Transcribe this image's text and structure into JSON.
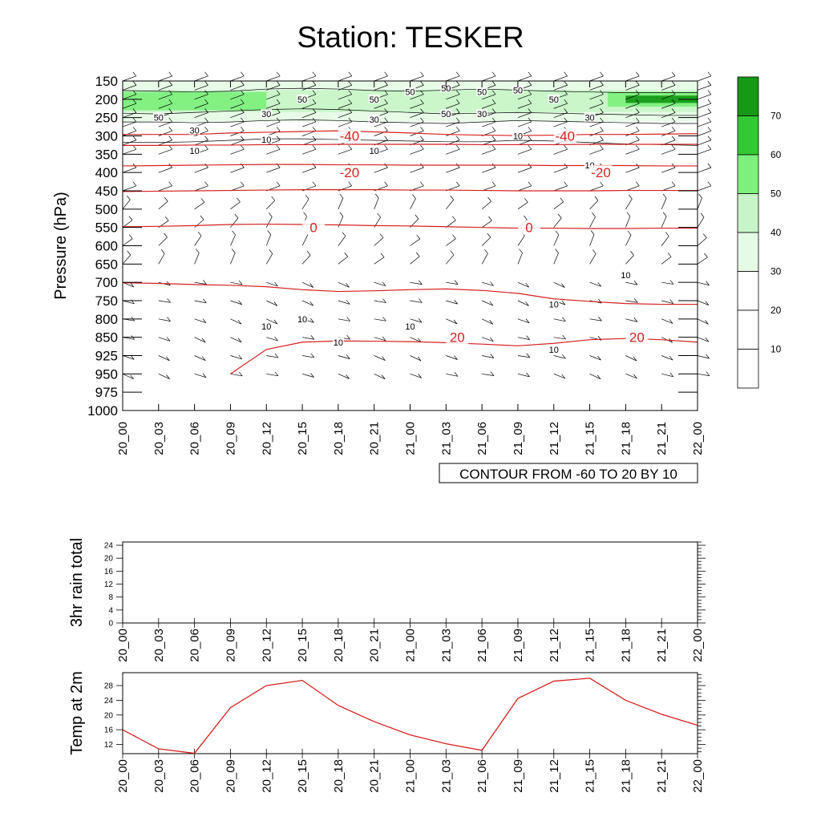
{
  "title": "Station: TESKER",
  "colors": {
    "contour_line": "#d62020",
    "thin_contour": "#000000",
    "shade_levels": [
      "#ffffff",
      "#ffffff",
      "#e6fbe6",
      "#c8f5c8",
      "#7df07d",
      "#33c933",
      "#169a16"
    ]
  },
  "chart_data": [
    {
      "type": "heatmap",
      "title": "Station: TESKER",
      "ylabel": "Pressure (hPa)",
      "xlabel": "",
      "x_tick_labels": [
        "20_00",
        "20_03",
        "20_06",
        "20_09",
        "20_12",
        "20_15",
        "20_18",
        "20_21",
        "21_00",
        "21_03",
        "21_06",
        "21_09",
        "21_12",
        "21_15",
        "21_18",
        "21_21",
        "22_00"
      ],
      "y_tick_labels": [
        "150",
        "200",
        "250",
        "300",
        "350",
        "400",
        "450",
        "500",
        "550",
        "600",
        "650",
        "700",
        "750",
        "800",
        "850",
        "925",
        "950",
        "975",
        "1000"
      ],
      "ylim": [
        1000,
        150
      ],
      "contour_info": "CONTOUR FROM -60 TO 20 BY 10",
      "colorbar": {
        "levels": [
          10,
          20,
          30,
          40,
          50,
          60,
          70
        ],
        "labels": [
          "10",
          "20",
          "30",
          "40",
          "50",
          "60",
          "70"
        ],
        "orientation": "vertical"
      },
      "temperature_contour_labels": [
        {
          "value": "-40",
          "x": "20_18",
          "p": 300
        },
        {
          "value": "-40",
          "x": "21_12",
          "p": 300
        },
        {
          "value": "-20",
          "x": "20_18",
          "p": 400
        },
        {
          "value": "-20",
          "x": "21_15",
          "p": 400
        },
        {
          "value": "0",
          "x": "20_15",
          "p": 550
        },
        {
          "value": "0",
          "x": "21_09",
          "p": 550
        },
        {
          "value": "20",
          "x": "21_03",
          "p": 850
        },
        {
          "value": "20",
          "x": "21_18",
          "p": 850
        }
      ],
      "temperature_contours": [
        {
          "level": -40,
          "p": [
            296,
            296,
            296,
            292,
            290,
            288,
            286,
            289,
            292,
            296,
            298,
            299,
            298,
            296,
            296,
            295,
            294
          ]
        },
        {
          "level": -30,
          "p": [
            326,
            326,
            325,
            325,
            324,
            324,
            323,
            323,
            323,
            323,
            324,
            324,
            324,
            323,
            323,
            323,
            323
          ]
        },
        {
          "level": -20,
          "p": [
            382,
            381,
            380,
            379,
            378,
            378,
            379,
            379,
            380,
            380,
            380,
            380,
            381,
            381,
            381,
            382,
            382
          ]
        },
        {
          "level": -10,
          "p": [
            452,
            451,
            450,
            449,
            448,
            447,
            447,
            447,
            448,
            448,
            449,
            450,
            450,
            450,
            449,
            449,
            449
          ]
        },
        {
          "level": 0,
          "p": [
            548,
            547,
            545,
            542,
            541,
            542,
            543,
            545,
            546,
            548,
            550,
            552,
            552,
            553,
            553,
            552,
            552
          ]
        },
        {
          "level": 10,
          "p": [
            701,
            703,
            706,
            708,
            712,
            720,
            725,
            723,
            720,
            718,
            722,
            730,
            745,
            752,
            758,
            760,
            760
          ]
        },
        {
          "level": 20,
          "p": [
            null,
            null,
            null,
            950,
            900,
            870,
            865,
            866,
            868,
            872,
            878,
            885,
            875,
            860,
            855,
            860,
            870
          ]
        }
      ],
      "wind_speed_labels": [
        {
          "value": "50",
          "x": "20_03",
          "p": 250
        },
        {
          "value": "50",
          "x": "20_15",
          "p": 200
        },
        {
          "value": "50",
          "x": "20_21",
          "p": 200
        },
        {
          "value": "50",
          "x": "21_00",
          "p": 180
        },
        {
          "value": "50",
          "x": "21_03",
          "p": 170
        },
        {
          "value": "50",
          "x": "21_06",
          "p": 180
        },
        {
          "value": "50",
          "x": "21_09",
          "p": 175
        },
        {
          "value": "50",
          "x": "21_03",
          "p": 240
        },
        {
          "value": "50",
          "x": "21_12",
          "p": 200
        },
        {
          "value": "30",
          "x": "20_12",
          "p": 240
        },
        {
          "value": "30",
          "x": "20_06",
          "p": 285
        },
        {
          "value": "30",
          "x": "20_21",
          "p": 255
        },
        {
          "value": "30",
          "x": "21_06",
          "p": 240
        },
        {
          "value": "30",
          "x": "21_15",
          "p": 250
        },
        {
          "value": "10",
          "x": "20_06",
          "p": 340
        },
        {
          "value": "10",
          "x": "20_12",
          "p": 310
        },
        {
          "value": "10",
          "x": "20_21",
          "p": 340
        },
        {
          "value": "10",
          "x": "21_09",
          "p": 300
        },
        {
          "value": "10",
          "x": "21_15",
          "p": 380
        },
        {
          "value": "10",
          "x": "21_18",
          "p": 680
        },
        {
          "value": "10",
          "x": "21_12",
          "p": 760
        },
        {
          "value": "10",
          "x": "20_12",
          "p": 820
        },
        {
          "value": "10",
          "x": "20_15",
          "p": 800
        },
        {
          "value": "10",
          "x": "21_00",
          "p": 820
        },
        {
          "value": "10",
          "x": "20_18",
          "p": 870
        },
        {
          "value": "10",
          "x": "21_12",
          "p": 900
        }
      ],
      "wind_shading": [
        {
          "x": [
            0,
            16
          ],
          "p_top": 150,
          "p_bottom": 260,
          "level": 40
        },
        {
          "x": [
            0,
            16
          ],
          "p_top": 175,
          "p_bottom": 235,
          "level": 50
        },
        {
          "x": [
            0,
            4
          ],
          "p_top": 180,
          "p_bottom": 230,
          "level": 60
        },
        {
          "x": [
            13.5,
            16
          ],
          "p_top": 180,
          "p_bottom": 220,
          "level": 60
        },
        {
          "x": [
            14,
            16
          ],
          "p_top": 190,
          "p_bottom": 210,
          "level": 70
        }
      ]
    },
    {
      "type": "line",
      "ylabel": "3hr rain total",
      "xlabel": "",
      "x": [
        "20_00",
        "20_03",
        "20_06",
        "20_09",
        "20_12",
        "20_15",
        "20_18",
        "20_21",
        "21_00",
        "21_03",
        "21_06",
        "21_09",
        "21_12",
        "21_15",
        "21_18",
        "21_21",
        "22_00"
      ],
      "values": [
        0,
        0,
        0,
        0,
        0,
        0,
        0,
        0,
        0,
        0,
        0,
        0,
        0,
        0,
        0,
        0,
        0
      ],
      "ylim": [
        0,
        25
      ],
      "y_tick_labels": [
        "0",
        "4",
        "8",
        "12",
        "16",
        "20",
        "24"
      ]
    },
    {
      "type": "line",
      "ylabel": "Temp at 2m",
      "xlabel": "",
      "x": [
        "20_00",
        "20_03",
        "20_06",
        "20_09",
        "20_12",
        "20_15",
        "20_18",
        "20_21",
        "21_00",
        "21_03",
        "21_06",
        "21_09",
        "21_12",
        "21_15",
        "21_18",
        "21_21",
        "22_00"
      ],
      "values": [
        16.0,
        10.8,
        9.6,
        22.0,
        28.0,
        29.4,
        22.6,
        18.2,
        14.6,
        12.2,
        10.4,
        24.5,
        29.2,
        30.0,
        24.0,
        20.2,
        17.2
      ],
      "ylim": [
        9.5,
        31.5
      ],
      "y_tick_labels": [
        "12",
        "16",
        "20",
        "24",
        "28"
      ]
    }
  ]
}
